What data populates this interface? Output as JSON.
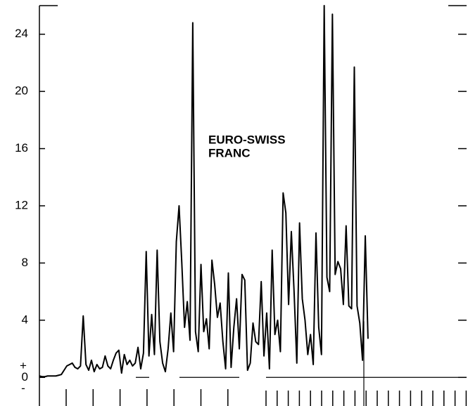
{
  "chart_data": {
    "type": "line",
    "annotation": [
      "EURO-SWISS",
      "FRANC"
    ],
    "sign_labels": {
      "above": "+",
      "below": "-"
    },
    "x": [
      0,
      1,
      2,
      3,
      4,
      5,
      6,
      7,
      8,
      9,
      10,
      11,
      12,
      13,
      14,
      15,
      16,
      17,
      18,
      19,
      20,
      21,
      22,
      23,
      24,
      25,
      26,
      27,
      28,
      29,
      30,
      31,
      32,
      33,
      34,
      35,
      36,
      37,
      38,
      39,
      40,
      41,
      42,
      43,
      44,
      45,
      46,
      47,
      48,
      49,
      50,
      51,
      52,
      53,
      54,
      55,
      56,
      57,
      58,
      59,
      60,
      61,
      62,
      63,
      64,
      65,
      66,
      67,
      68,
      69,
      70,
      71,
      72,
      73,
      74,
      75,
      76,
      77,
      78,
      79,
      80,
      81,
      82,
      83,
      84,
      85,
      86,
      87,
      88,
      89,
      90,
      91,
      92,
      93,
      94,
      95,
      96,
      97,
      98,
      99,
      100,
      101,
      102,
      103,
      104,
      105,
      106,
      107,
      108,
      109,
      110,
      111,
      112,
      113,
      114,
      115,
      116,
      117,
      118,
      119,
      120
    ],
    "series": [
      {
        "color": "#000000",
        "values": [
          0.1,
          0.05,
          0.05,
          0.1,
          0.1,
          0.1,
          0.1,
          0.15,
          0.2,
          0.5,
          0.8,
          0.9,
          1.0,
          0.7,
          0.6,
          0.8,
          4.3,
          0.9,
          0.5,
          1.2,
          0.4,
          0.9,
          0.6,
          0.7,
          1.5,
          0.8,
          0.6,
          1.2,
          1.7,
          1.9,
          0.3,
          1.6,
          0.9,
          1.2,
          0.8,
          1.0,
          2.1,
          0.6,
          1.7,
          8.8,
          1.5,
          4.4,
          1.6,
          8.9,
          2.5,
          1.0,
          0.4,
          2.0,
          4.5,
          1.8,
          9.5,
          12,
          8,
          3.5,
          5.3,
          2.6,
          24.8,
          3.2,
          1.8,
          7.9,
          3.2,
          4.1,
          2.0,
          8.2,
          6.5,
          4.2,
          5.2,
          2.5,
          0.6,
          7.3,
          0.7,
          3.5,
          5.5,
          2.0,
          7.2,
          6.8,
          0.5,
          1.0,
          3.8,
          2.5,
          2.3,
          6.7,
          1.5,
          4.5,
          0.6,
          8.9,
          3.0,
          4.0,
          1.8,
          12.9,
          11.5,
          5.1,
          10.2,
          6.0,
          1.0,
          10.8,
          5.5,
          4.0,
          1.6,
          3.0,
          0.9,
          10.1,
          3.5,
          1.6,
          26,
          7.0,
          6.0,
          25.4,
          7.2,
          8.1,
          7.6,
          5.1,
          10.6,
          5.0,
          4.8,
          21.7,
          5.0,
          3.8,
          1.2,
          9.9,
          2.7
        ]
      }
    ],
    "xlim": [
      0,
      156
    ],
    "ylim": [
      -2,
      26
    ],
    "yticks": [
      0,
      4,
      8,
      12,
      16,
      20,
      24
    ]
  }
}
